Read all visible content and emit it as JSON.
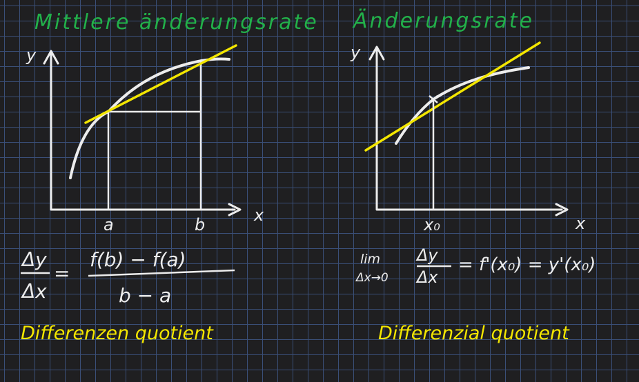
{
  "left": {
    "title": "Mittlere änderungsrate",
    "axis_y": "y",
    "axis_x": "x",
    "point_a": "a",
    "point_b": "b",
    "formula": {
      "lhs_num": "Δy",
      "lhs_den": "Δx",
      "equals": "=",
      "rhs_num": "f(b) − f(a)",
      "rhs_den": "b − a"
    },
    "caption": "Differenzen quotient"
  },
  "right": {
    "title": "Änderungsrate",
    "axis_y": "y",
    "axis_x": "x",
    "point_x0": "x₀",
    "formula": {
      "lim": "lim",
      "lim_sub": "Δx→0",
      "frac_num": "Δy",
      "frac_den": "Δx",
      "rest": "= f'(x₀) = y'(x₀)"
    },
    "caption": "Differenzial quotient"
  },
  "colors": {
    "background": "#1f1f21",
    "grid": "#3a4f78",
    "title_green": "#22b04a",
    "line_yellow": "#f3e600",
    "chalk_white": "#ececec"
  }
}
